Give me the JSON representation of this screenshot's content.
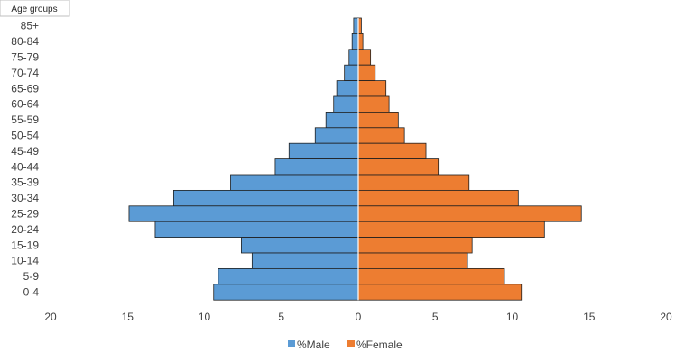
{
  "chart_data": {
    "type": "bar",
    "orientation": "horizontal-diverging",
    "category_axis_title": "Age groups",
    "categories": [
      "85+",
      "80-84",
      "75-79",
      "70-74",
      "65-69",
      "60-64",
      "55-59",
      "50-54",
      "45-49",
      "40-44",
      "35-39",
      "30-34",
      "25-29",
      "20-24",
      "15-19",
      "10-14",
      "5-9",
      "0-4"
    ],
    "series": [
      {
        "name": "%Male",
        "color": "#5b9bd5",
        "values": [
          0.3,
          0.4,
          0.6,
          0.9,
          1.4,
          1.6,
          2.1,
          2.8,
          4.5,
          5.4,
          8.3,
          12.0,
          14.9,
          13.2,
          7.6,
          6.9,
          9.1,
          9.4
        ]
      },
      {
        "name": "%Female",
        "color": "#ed7d31",
        "values": [
          0.2,
          0.3,
          0.8,
          1.1,
          1.8,
          2.0,
          2.6,
          3.0,
          4.4,
          5.2,
          7.2,
          10.4,
          14.5,
          12.1,
          7.4,
          7.1,
          9.5,
          10.6
        ]
      }
    ],
    "xlim": [
      -20,
      20
    ],
    "x_ticks": [
      -20,
      -15,
      -10,
      -5,
      0,
      5,
      10,
      15,
      20
    ],
    "x_tick_labels": [
      "20",
      "15",
      "10",
      "5",
      "0",
      "5",
      "10",
      "15",
      "20"
    ],
    "gridlines": false,
    "legend_position": "bottom"
  }
}
